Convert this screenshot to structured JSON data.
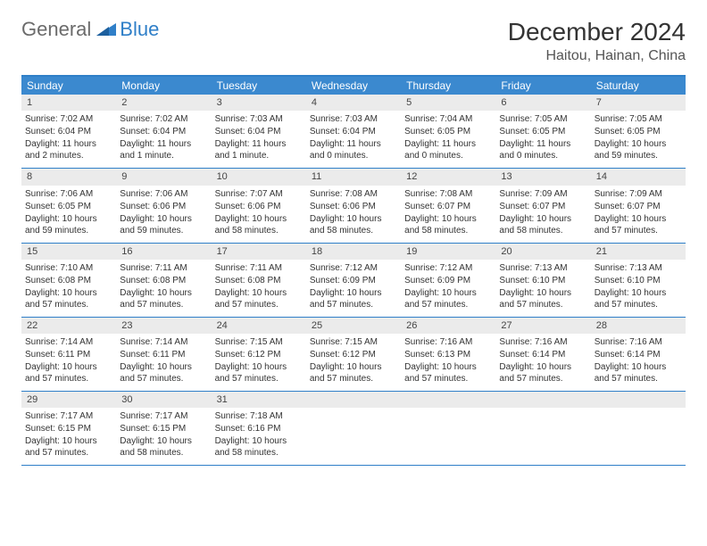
{
  "logo": {
    "word1": "General",
    "word2": "Blue"
  },
  "title": "December 2024",
  "location": "Haitou, Hainan, China",
  "colors": {
    "header_bg": "#3b89cf",
    "header_text": "#ffffff",
    "accent_line": "#2f7fc8",
    "daynum_bg": "#ebebeb",
    "body_text": "#333333"
  },
  "days_of_week": [
    "Sunday",
    "Monday",
    "Tuesday",
    "Wednesday",
    "Thursday",
    "Friday",
    "Saturday"
  ],
  "weeks": [
    [
      {
        "n": "1",
        "sr": "Sunrise: 7:02 AM",
        "ss": "Sunset: 6:04 PM",
        "dl": "Daylight: 11 hours and 2 minutes."
      },
      {
        "n": "2",
        "sr": "Sunrise: 7:02 AM",
        "ss": "Sunset: 6:04 PM",
        "dl": "Daylight: 11 hours and 1 minute."
      },
      {
        "n": "3",
        "sr": "Sunrise: 7:03 AM",
        "ss": "Sunset: 6:04 PM",
        "dl": "Daylight: 11 hours and 1 minute."
      },
      {
        "n": "4",
        "sr": "Sunrise: 7:03 AM",
        "ss": "Sunset: 6:04 PM",
        "dl": "Daylight: 11 hours and 0 minutes."
      },
      {
        "n": "5",
        "sr": "Sunrise: 7:04 AM",
        "ss": "Sunset: 6:05 PM",
        "dl": "Daylight: 11 hours and 0 minutes."
      },
      {
        "n": "6",
        "sr": "Sunrise: 7:05 AM",
        "ss": "Sunset: 6:05 PM",
        "dl": "Daylight: 11 hours and 0 minutes."
      },
      {
        "n": "7",
        "sr": "Sunrise: 7:05 AM",
        "ss": "Sunset: 6:05 PM",
        "dl": "Daylight: 10 hours and 59 minutes."
      }
    ],
    [
      {
        "n": "8",
        "sr": "Sunrise: 7:06 AM",
        "ss": "Sunset: 6:05 PM",
        "dl": "Daylight: 10 hours and 59 minutes."
      },
      {
        "n": "9",
        "sr": "Sunrise: 7:06 AM",
        "ss": "Sunset: 6:06 PM",
        "dl": "Daylight: 10 hours and 59 minutes."
      },
      {
        "n": "10",
        "sr": "Sunrise: 7:07 AM",
        "ss": "Sunset: 6:06 PM",
        "dl": "Daylight: 10 hours and 58 minutes."
      },
      {
        "n": "11",
        "sr": "Sunrise: 7:08 AM",
        "ss": "Sunset: 6:06 PM",
        "dl": "Daylight: 10 hours and 58 minutes."
      },
      {
        "n": "12",
        "sr": "Sunrise: 7:08 AM",
        "ss": "Sunset: 6:07 PM",
        "dl": "Daylight: 10 hours and 58 minutes."
      },
      {
        "n": "13",
        "sr": "Sunrise: 7:09 AM",
        "ss": "Sunset: 6:07 PM",
        "dl": "Daylight: 10 hours and 58 minutes."
      },
      {
        "n": "14",
        "sr": "Sunrise: 7:09 AM",
        "ss": "Sunset: 6:07 PM",
        "dl": "Daylight: 10 hours and 57 minutes."
      }
    ],
    [
      {
        "n": "15",
        "sr": "Sunrise: 7:10 AM",
        "ss": "Sunset: 6:08 PM",
        "dl": "Daylight: 10 hours and 57 minutes."
      },
      {
        "n": "16",
        "sr": "Sunrise: 7:11 AM",
        "ss": "Sunset: 6:08 PM",
        "dl": "Daylight: 10 hours and 57 minutes."
      },
      {
        "n": "17",
        "sr": "Sunrise: 7:11 AM",
        "ss": "Sunset: 6:08 PM",
        "dl": "Daylight: 10 hours and 57 minutes."
      },
      {
        "n": "18",
        "sr": "Sunrise: 7:12 AM",
        "ss": "Sunset: 6:09 PM",
        "dl": "Daylight: 10 hours and 57 minutes."
      },
      {
        "n": "19",
        "sr": "Sunrise: 7:12 AM",
        "ss": "Sunset: 6:09 PM",
        "dl": "Daylight: 10 hours and 57 minutes."
      },
      {
        "n": "20",
        "sr": "Sunrise: 7:13 AM",
        "ss": "Sunset: 6:10 PM",
        "dl": "Daylight: 10 hours and 57 minutes."
      },
      {
        "n": "21",
        "sr": "Sunrise: 7:13 AM",
        "ss": "Sunset: 6:10 PM",
        "dl": "Daylight: 10 hours and 57 minutes."
      }
    ],
    [
      {
        "n": "22",
        "sr": "Sunrise: 7:14 AM",
        "ss": "Sunset: 6:11 PM",
        "dl": "Daylight: 10 hours and 57 minutes."
      },
      {
        "n": "23",
        "sr": "Sunrise: 7:14 AM",
        "ss": "Sunset: 6:11 PM",
        "dl": "Daylight: 10 hours and 57 minutes."
      },
      {
        "n": "24",
        "sr": "Sunrise: 7:15 AM",
        "ss": "Sunset: 6:12 PM",
        "dl": "Daylight: 10 hours and 57 minutes."
      },
      {
        "n": "25",
        "sr": "Sunrise: 7:15 AM",
        "ss": "Sunset: 6:12 PM",
        "dl": "Daylight: 10 hours and 57 minutes."
      },
      {
        "n": "26",
        "sr": "Sunrise: 7:16 AM",
        "ss": "Sunset: 6:13 PM",
        "dl": "Daylight: 10 hours and 57 minutes."
      },
      {
        "n": "27",
        "sr": "Sunrise: 7:16 AM",
        "ss": "Sunset: 6:14 PM",
        "dl": "Daylight: 10 hours and 57 minutes."
      },
      {
        "n": "28",
        "sr": "Sunrise: 7:16 AM",
        "ss": "Sunset: 6:14 PM",
        "dl": "Daylight: 10 hours and 57 minutes."
      }
    ],
    [
      {
        "n": "29",
        "sr": "Sunrise: 7:17 AM",
        "ss": "Sunset: 6:15 PM",
        "dl": "Daylight: 10 hours and 57 minutes."
      },
      {
        "n": "30",
        "sr": "Sunrise: 7:17 AM",
        "ss": "Sunset: 6:15 PM",
        "dl": "Daylight: 10 hours and 58 minutes."
      },
      {
        "n": "31",
        "sr": "Sunrise: 7:18 AM",
        "ss": "Sunset: 6:16 PM",
        "dl": "Daylight: 10 hours and 58 minutes."
      },
      null,
      null,
      null,
      null
    ]
  ]
}
